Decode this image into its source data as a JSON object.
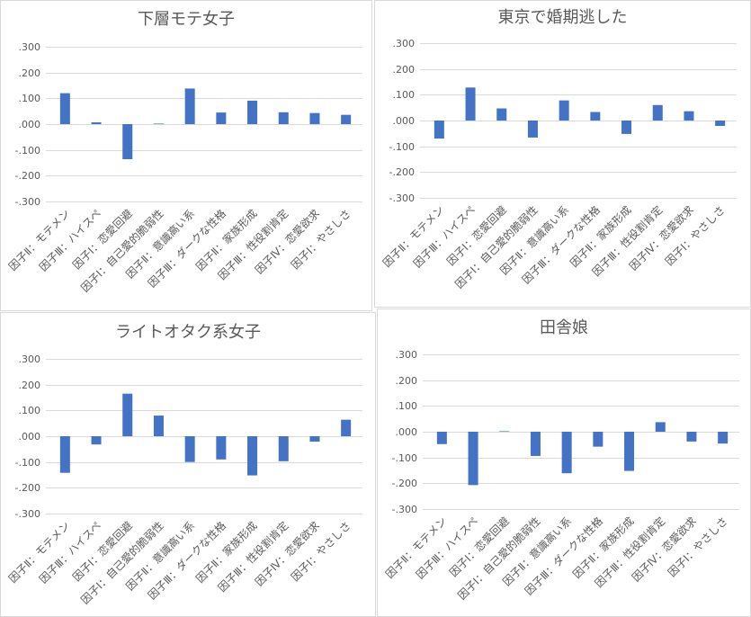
{
  "colors": {
    "bar": "#4472C4",
    "grid": "#D9D9D9",
    "axis_text": "#595959",
    "title": "#595959"
  },
  "chart_data": [
    {
      "type": "bar",
      "title": "下層モテ女子",
      "xlabel": "",
      "ylabel": "",
      "categories": [
        "因子Ⅱ：モテメン",
        "因子Ⅲ：ハイスペ",
        "因子Ⅰ：恋愛回避",
        "因子Ⅰ：自己愛的脆弱性",
        "因子Ⅱ：意識高い系",
        "因子Ⅲ：ダークな性格",
        "因子Ⅱ：家族形成",
        "因子Ⅲ：性役割肯定",
        "因子Ⅳ：恋愛欲求",
        "因子Ⅰ：やさしさ"
      ],
      "values": [
        0.12,
        0.007,
        -0.136,
        0.002,
        0.138,
        0.045,
        0.091,
        0.046,
        0.043,
        0.036
      ],
      "ylim": [
        -0.3,
        0.3
      ],
      "yticks": [
        0.3,
        0.2,
        0.1,
        0.0,
        -0.1,
        -0.2,
        -0.3
      ],
      "ytick_labels": [
        ".300",
        ".200",
        ".100",
        ".000",
        "-.100",
        "-.200",
        "-.300"
      ],
      "grid": true,
      "legend": "none"
    },
    {
      "type": "bar",
      "title": "東京で婚期逃した",
      "xlabel": "",
      "ylabel": "",
      "categories": [
        "因子Ⅱ：モテメン",
        "因子Ⅲ：ハイスペ",
        "因子Ⅰ：恋愛回避",
        "因子Ⅰ：自己愛的脆弱性",
        "因子Ⅱ：意識高い系",
        "因子Ⅲ：ダークな性格",
        "因子Ⅱ：家族形成",
        "因子Ⅲ：性役割肯定",
        "因子Ⅳ：恋愛欲求",
        "因子Ⅰ：やさしさ"
      ],
      "values": [
        -0.07,
        0.128,
        0.047,
        -0.066,
        0.078,
        0.033,
        -0.052,
        0.06,
        0.036,
        -0.021
      ],
      "ylim": [
        -0.3,
        0.3
      ],
      "yticks": [
        0.3,
        0.2,
        0.1,
        0.0,
        -0.1,
        -0.2,
        -0.3
      ],
      "ytick_labels": [
        ".300",
        ".200",
        ".100",
        ".000",
        "-.100",
        "-.200",
        "-.300"
      ],
      "grid": true,
      "legend": "none"
    },
    {
      "type": "bar",
      "title": "ライトオタク系女子",
      "xlabel": "",
      "ylabel": "",
      "categories": [
        "因子Ⅱ：モテメン",
        "因子Ⅲ：ハイスペ",
        "因子Ⅰ：恋愛回避",
        "因子Ⅰ：自己愛的脆弱性",
        "因子Ⅱ：意識高い系",
        "因子Ⅲ：ダークな性格",
        "因子Ⅱ：家族形成",
        "因子Ⅲ：性役割肯定",
        "因子Ⅳ：恋愛欲求",
        "因子Ⅰ：やさしさ"
      ],
      "values": [
        -0.142,
        -0.032,
        0.165,
        0.08,
        -0.1,
        -0.09,
        -0.152,
        -0.097,
        -0.021,
        0.064
      ],
      "ylim": [
        -0.3,
        0.3
      ],
      "yticks": [
        0.3,
        0.2,
        0.1,
        0.0,
        -0.1,
        -0.2,
        -0.3
      ],
      "ytick_labels": [
        ".300",
        ".200",
        ".100",
        ".000",
        "-.100",
        "-.200",
        "-.300"
      ],
      "grid": true,
      "legend": "none"
    },
    {
      "type": "bar",
      "title": "田舎娘",
      "xlabel": "",
      "ylabel": "",
      "categories": [
        "因子Ⅱ：モテメン",
        "因子Ⅲ：ハイスペ",
        "因子Ⅰ：恋愛回避",
        "因子Ⅰ：自己愛的脆弱性",
        "因子Ⅱ：意識高い系",
        "因子Ⅲ：ダークな性格",
        "因子Ⅱ：家族形成",
        "因子Ⅲ：性役割肯定",
        "因子Ⅳ：恋愛欲求",
        "因子Ⅰ：やさしさ"
      ],
      "values": [
        -0.048,
        -0.207,
        0.002,
        -0.094,
        -0.161,
        -0.058,
        -0.152,
        0.037,
        -0.038,
        -0.046
      ],
      "ylim": [
        -0.3,
        0.3
      ],
      "yticks": [
        0.3,
        0.2,
        0.1,
        0.0,
        -0.1,
        -0.2,
        -0.3
      ],
      "ytick_labels": [
        ".300",
        ".200",
        ".100",
        ".000",
        "-.100",
        "-.200",
        "-.300"
      ],
      "grid": true,
      "legend": "none"
    }
  ]
}
